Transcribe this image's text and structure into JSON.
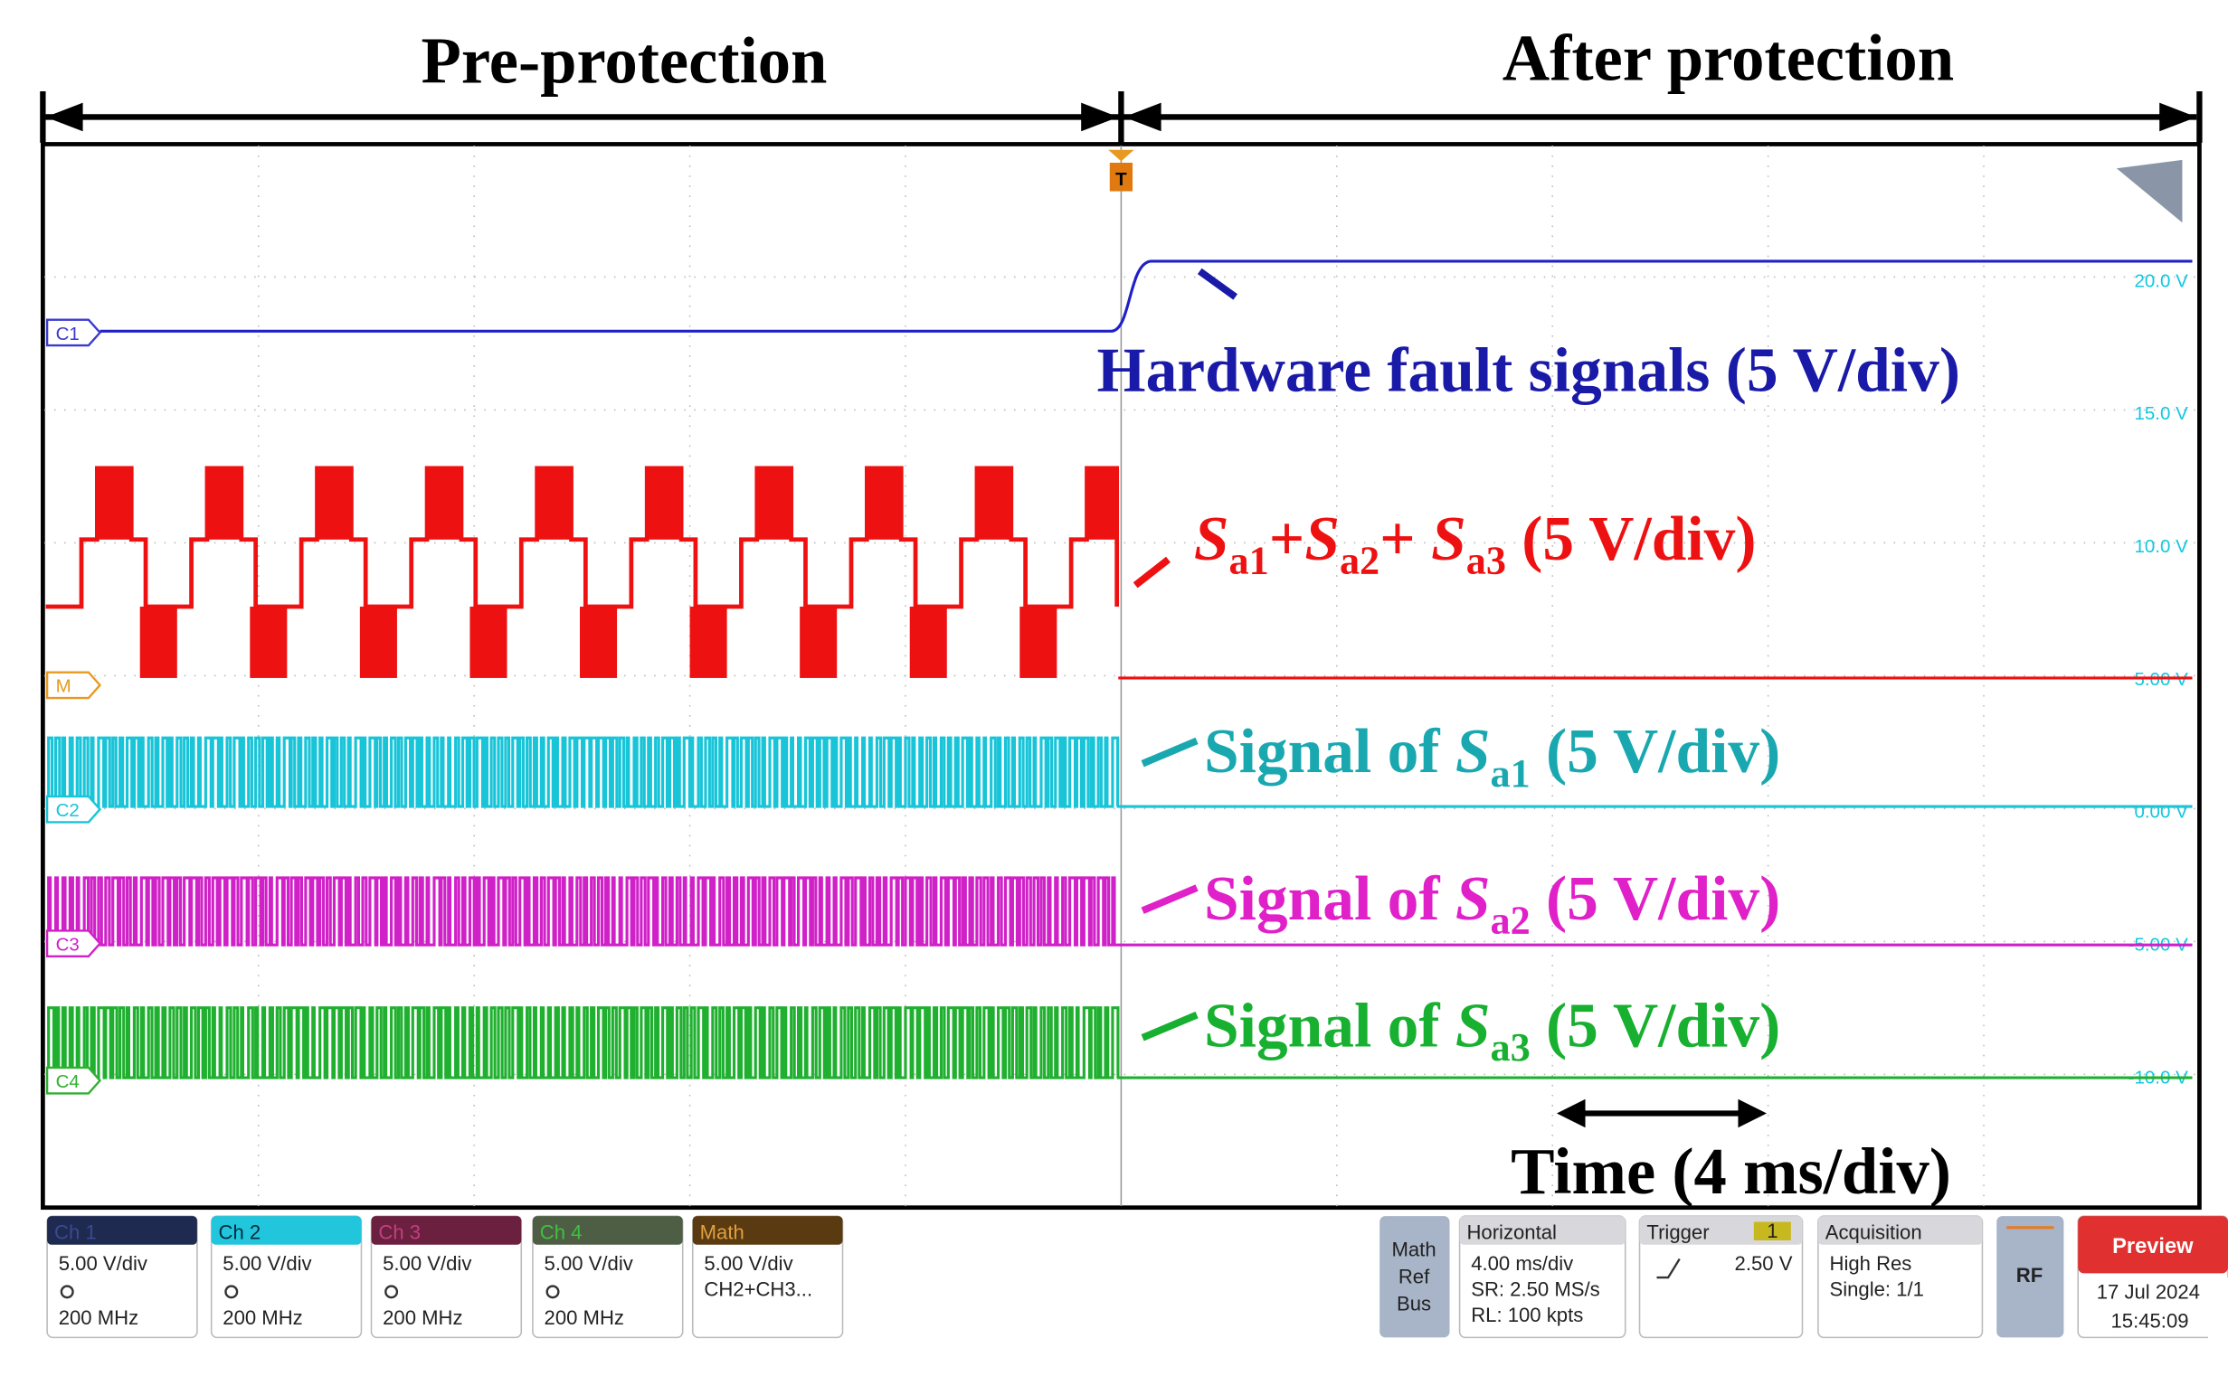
{
  "header": {
    "left": "Pre-protection",
    "right": "After protection"
  },
  "scope": {
    "trigger": "T",
    "markers": [
      "C1",
      "M",
      "C2",
      "C3",
      "C4"
    ],
    "scale_labels": [
      "20.0 V",
      "15.0 V",
      "10.0 V",
      "5.00 V",
      "0.00 V",
      "-5.00 V",
      "-10.0 V"
    ]
  },
  "annotations": {
    "fault": "Hardware fault signals (5 V/div)",
    "sum": [
      "S",
      "a1",
      "+",
      "S",
      "a2",
      "+ ",
      "S",
      "a3",
      " (5 V/div)"
    ],
    "signal_a1": [
      "Signal of ",
      "S",
      "a1",
      " (5 V/div)"
    ],
    "signal_a2": [
      "Signal of ",
      "S",
      "a2",
      " (5 V/div)"
    ],
    "signal_a3": [
      "Signal of ",
      "S",
      "a3",
      " (5 V/div)"
    ],
    "time": "Time (4 ms/div)"
  },
  "status_bar": {
    "channels": [
      {
        "name": "Ch 1",
        "scale": "5.00 V/div",
        "bandwidth": "200 MHz"
      },
      {
        "name": "Ch 2",
        "scale": "5.00 V/div",
        "bandwidth": "200 MHz"
      },
      {
        "name": "Ch 3",
        "scale": "5.00 V/div",
        "bandwidth": "200 MHz"
      },
      {
        "name": "Ch 4",
        "scale": "5.00 V/div",
        "bandwidth": "200 MHz"
      }
    ],
    "math": {
      "name": "Math",
      "scale": "5.00 V/div",
      "source": "CH2+CH3..."
    },
    "mrb": [
      "Math",
      "Ref",
      "Bus"
    ],
    "horizontal": {
      "title": "Horizontal",
      "scale": "4.00 ms/div",
      "sr": "SR: 2.50 MS/s",
      "rl": "RL: 100 kpts"
    },
    "trigger": {
      "title": "Trigger",
      "source": "1",
      "level": "2.50 V"
    },
    "acquisition": {
      "title": "Acquisition",
      "mode": "High Res",
      "count": "Single: 1/1"
    },
    "rf": "RF",
    "preview": {
      "title": "Preview",
      "date": "17 Jul 2024",
      "time": "15:45:09"
    }
  }
}
